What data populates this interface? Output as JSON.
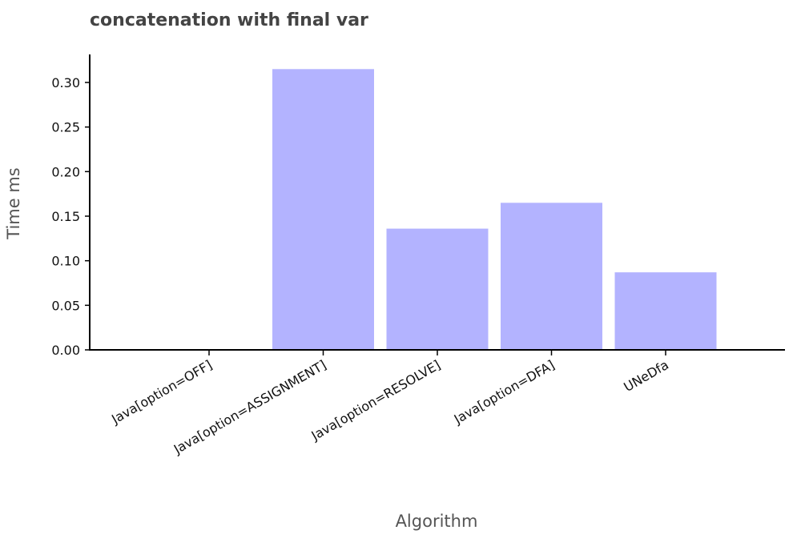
{
  "chart_data": {
    "type": "bar",
    "title": "concatenation with final var",
    "xlabel": "Algorithm",
    "ylabel": "Time ms",
    "categories": [
      "Java[option=OFF]",
      "Java[option=ASSIGNMENT]",
      "Java[option=RESOLVE]",
      "Java[option=DFA]",
      "UNeDfa"
    ],
    "values": [
      0.0,
      0.315,
      0.136,
      0.165,
      0.087
    ],
    "ylim": [
      0,
      0.33
    ],
    "yticks": [
      "0.00",
      "0.05",
      "0.10",
      "0.15",
      "0.20",
      "0.25",
      "0.30"
    ],
    "bar_color": "#b3b3ff",
    "grid": false,
    "legend": "none"
  }
}
